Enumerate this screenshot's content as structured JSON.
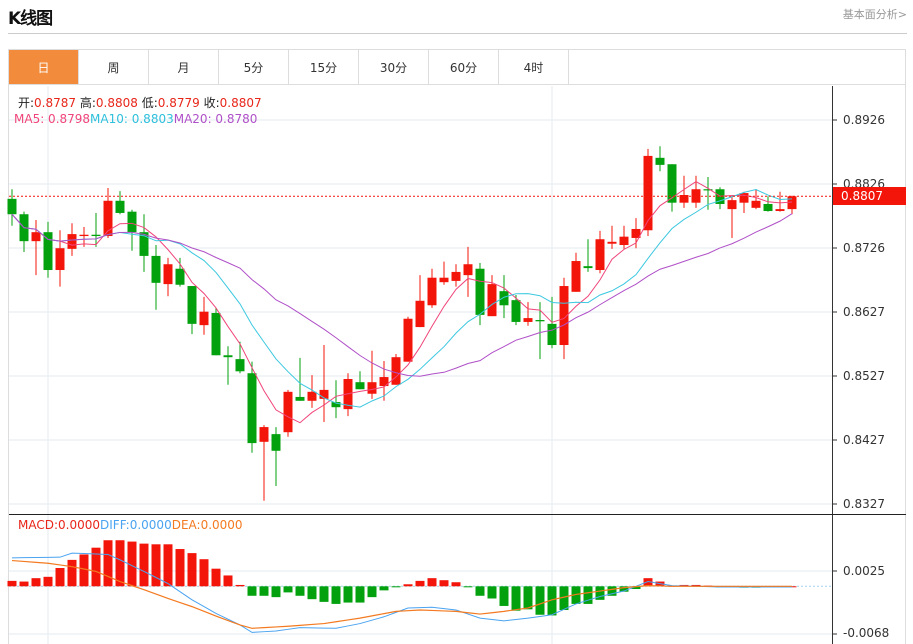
{
  "header": {
    "title": "K线图",
    "more_link": "基本面分析>"
  },
  "tabs": [
    {
      "label": "日",
      "active": true
    },
    {
      "label": "周"
    },
    {
      "label": "月"
    },
    {
      "label": "5分"
    },
    {
      "label": "15分"
    },
    {
      "label": "30分"
    },
    {
      "label": "60分"
    },
    {
      "label": "4时"
    }
  ],
  "ohlc_info": {
    "open_label": "开:",
    "open": "0.8787",
    "high_label": "高:",
    "high": "0.8808",
    "low_label": "低:",
    "low": "0.8779",
    "close_label": "收:",
    "close": "0.8807"
  },
  "ma_info": {
    "ma5": "MA5: 0.8798",
    "ma10": "MA10: 0.8803",
    "ma20": "MA20: 0.8780"
  },
  "macd_info": {
    "macd": "MACD:0.0000",
    "diff": "DIFF:0.0000",
    "dea": "DEA:0.0000"
  },
  "price_axis": [
    "0.8926",
    "0.8826",
    "0.8726",
    "0.8627",
    "0.8527",
    "0.8427",
    "0.8327"
  ],
  "macd_axis": [
    "0.0025",
    "-0.0068"
  ],
  "current_price": "0.8807",
  "colors": {
    "up": "#f3150a",
    "down": "#03a10e",
    "ma5": "#f0457a",
    "ma10": "#3cc8e0",
    "ma20": "#b050c8",
    "diff": "#4aa3f0",
    "dea": "#f37a20",
    "active_tab": "#f28c3c"
  },
  "chart_data": {
    "type": "candlestick",
    "price_range": [
      0.8327,
      0.8926
    ],
    "macd_range": [
      -0.0068,
      0.0025
    ],
    "candles_ochl_order": "open,close,high,low",
    "candles": [
      [
        0.8803,
        0.8779,
        0.8818,
        0.8761
      ],
      [
        0.8779,
        0.8737,
        0.8783,
        0.872
      ],
      [
        0.8737,
        0.8751,
        0.877,
        0.8684
      ],
      [
        0.8751,
        0.8692,
        0.8767,
        0.868
      ],
      [
        0.8692,
        0.8726,
        0.8754,
        0.8666
      ],
      [
        0.8725,
        0.8748,
        0.8765,
        0.8714
      ],
      [
        0.8745,
        0.8747,
        0.8759,
        0.8728
      ],
      [
        0.8747,
        0.8745,
        0.8781,
        0.8728
      ],
      [
        0.8745,
        0.88,
        0.882,
        0.8742
      ],
      [
        0.88,
        0.8781,
        0.8815,
        0.8779
      ],
      [
        0.8783,
        0.8751,
        0.8786,
        0.8722
      ],
      [
        0.8751,
        0.8714,
        0.8779,
        0.8689
      ],
      [
        0.8714,
        0.8672,
        0.8731,
        0.863
      ],
      [
        0.867,
        0.8701,
        0.8711,
        0.8651
      ],
      [
        0.8694,
        0.8669,
        0.8711,
        0.8666
      ],
      [
        0.8667,
        0.8608,
        0.8667,
        0.8592
      ],
      [
        0.8606,
        0.8627,
        0.865,
        0.8591
      ],
      [
        0.8625,
        0.8559,
        0.8633,
        0.8559
      ],
      [
        0.8559,
        0.8556,
        0.8573,
        0.8513
      ],
      [
        0.8553,
        0.8534,
        0.858,
        0.8531
      ],
      [
        0.8531,
        0.8422,
        0.8549,
        0.8407
      ],
      [
        0.8424,
        0.8447,
        0.845,
        0.8332
      ],
      [
        0.8436,
        0.841,
        0.8447,
        0.8355
      ],
      [
        0.8439,
        0.8502,
        0.8505,
        0.8432
      ],
      [
        0.8494,
        0.8488,
        0.8555,
        0.8488
      ],
      [
        0.8488,
        0.8502,
        0.8528,
        0.8477
      ],
      [
        0.8491,
        0.8505,
        0.8575,
        0.8455
      ],
      [
        0.8486,
        0.8478,
        0.852,
        0.8461
      ],
      [
        0.8475,
        0.8522,
        0.8531,
        0.8464
      ],
      [
        0.8517,
        0.8506,
        0.8534,
        0.8506
      ],
      [
        0.8499,
        0.8517,
        0.8566,
        0.8491
      ],
      [
        0.8511,
        0.8525,
        0.855,
        0.8488
      ],
      [
        0.8513,
        0.8556,
        0.8561,
        0.8513
      ],
      [
        0.8549,
        0.8616,
        0.8619,
        0.8549
      ],
      [
        0.8603,
        0.8644,
        0.8684,
        0.8603
      ],
      [
        0.8637,
        0.868,
        0.8694,
        0.8633
      ],
      [
        0.8673,
        0.868,
        0.8705,
        0.8669
      ],
      [
        0.8675,
        0.8689,
        0.8701,
        0.8666
      ],
      [
        0.8684,
        0.8701,
        0.8728,
        0.865
      ],
      [
        0.8694,
        0.8622,
        0.8703,
        0.8606
      ],
      [
        0.862,
        0.867,
        0.8684,
        0.862
      ],
      [
        0.8659,
        0.8637,
        0.8684,
        0.8617
      ],
      [
        0.8645,
        0.8611,
        0.8653,
        0.8606
      ],
      [
        0.8611,
        0.8617,
        0.8642,
        0.8605
      ],
      [
        0.8614,
        0.8612,
        0.8642,
        0.8553
      ],
      [
        0.8608,
        0.8575,
        0.865,
        0.857
      ],
      [
        0.8575,
        0.8667,
        0.868,
        0.8553
      ],
      [
        0.8658,
        0.8706,
        0.8719,
        0.8658
      ],
      [
        0.8698,
        0.8695,
        0.874,
        0.8689
      ],
      [
        0.8692,
        0.874,
        0.8753,
        0.8687
      ],
      [
        0.8733,
        0.8736,
        0.8761,
        0.8725
      ],
      [
        0.8731,
        0.8744,
        0.8761,
        0.8725
      ],
      [
        0.8742,
        0.8756,
        0.8773,
        0.8726
      ],
      [
        0.8754,
        0.887,
        0.8881,
        0.8745
      ],
      [
        0.8867,
        0.8856,
        0.8885,
        0.8846
      ],
      [
        0.8857,
        0.8797,
        0.8857,
        0.8783
      ],
      [
        0.8797,
        0.8809,
        0.8839,
        0.8789
      ],
      [
        0.8797,
        0.8818,
        0.8839,
        0.8789
      ],
      [
        0.8818,
        0.8817,
        0.8837,
        0.8786
      ],
      [
        0.8818,
        0.8795,
        0.8821,
        0.8787
      ],
      [
        0.8787,
        0.8801,
        0.8809,
        0.8742
      ],
      [
        0.8797,
        0.8812,
        0.8814,
        0.8781
      ],
      [
        0.8789,
        0.88,
        0.8818,
        0.8787
      ],
      [
        0.8795,
        0.8784,
        0.8807,
        0.8783
      ],
      [
        0.8784,
        0.8787,
        0.8814,
        0.8783
      ],
      [
        0.8787,
        0.8807,
        0.8808,
        0.8779
      ]
    ],
    "macd_hist": [
      0.0008,
      0.0007,
      0.0012,
      0.0014,
      0.0027,
      0.0039,
      0.0047,
      0.0057,
      0.0068,
      0.0068,
      0.0066,
      0.0063,
      0.0062,
      0.0062,
      0.0055,
      0.0049,
      0.004,
      0.0026,
      0.0016,
      0.0002,
      -0.0014,
      -0.0014,
      -0.0016,
      -0.0009,
      -0.0014,
      -0.0019,
      -0.0023,
      -0.0026,
      -0.0024,
      -0.0024,
      -0.0016,
      -0.0006,
      -0.0001,
      0.0003,
      0.0008,
      0.0012,
      0.0009,
      0.0006,
      -0.0001,
      -0.0014,
      -0.0018,
      -0.0029,
      -0.0036,
      -0.0034,
      -0.0042,
      -0.0043,
      -0.0035,
      -0.0026,
      -0.0026,
      -0.002,
      -0.0014,
      -0.0008,
      -0.0004,
      0.0012,
      0.0007,
      0.0001,
      0.0002,
      0.0002,
      0.0001,
      -0.0001,
      -0.0001,
      -0.0002,
      -0.0002,
      -0.0001,
      -0.0001,
      0.0
    ],
    "diff_points": [
      [
        0,
        0.0042
      ],
      [
        4,
        0.0043
      ],
      [
        5,
        0.0049
      ],
      [
        8,
        0.0047
      ],
      [
        9,
        0.0039
      ],
      [
        11,
        0.0022
      ],
      [
        13,
        0.0004
      ],
      [
        15,
        -0.002
      ],
      [
        17,
        -0.004
      ],
      [
        19,
        -0.0057
      ],
      [
        20,
        -0.0068
      ],
      [
        22,
        -0.0066
      ],
      [
        24,
        -0.0061
      ],
      [
        27,
        -0.0062
      ],
      [
        29,
        -0.0055
      ],
      [
        31,
        -0.0045
      ],
      [
        33,
        -0.0032
      ],
      [
        35,
        -0.0031
      ],
      [
        37,
        -0.0035
      ],
      [
        39,
        -0.0047
      ],
      [
        41,
        -0.0051
      ],
      [
        43,
        -0.0047
      ],
      [
        45,
        -0.0042
      ],
      [
        47,
        -0.0026
      ],
      [
        49,
        -0.0015
      ],
      [
        51,
        -0.0007
      ],
      [
        53,
        0.0007
      ],
      [
        55,
        0.0001
      ],
      [
        59,
        -0.0001
      ],
      [
        65,
        -0.0001
      ]
    ],
    "dea_points": [
      [
        0,
        0.0038
      ],
      [
        3,
        0.0034
      ],
      [
        5,
        0.0029
      ],
      [
        7,
        0.0022
      ],
      [
        9,
        0.0007
      ],
      [
        11,
        -0.0005
      ],
      [
        13,
        -0.0018
      ],
      [
        15,
        -0.003
      ],
      [
        17,
        -0.0044
      ],
      [
        19,
        -0.0057
      ],
      [
        20,
        -0.0062
      ],
      [
        23,
        -0.0059
      ],
      [
        26,
        -0.0055
      ],
      [
        29,
        -0.0047
      ],
      [
        32,
        -0.0037
      ],
      [
        34,
        -0.0035
      ],
      [
        37,
        -0.0037
      ],
      [
        39,
        -0.0041
      ],
      [
        41,
        -0.0037
      ],
      [
        43,
        -0.0032
      ],
      [
        45,
        -0.002
      ],
      [
        47,
        -0.0012
      ],
      [
        49,
        -0.0007
      ],
      [
        51,
        -0.0002
      ],
      [
        53,
        0.0001
      ],
      [
        55,
        0.0
      ],
      [
        65,
        0.0
      ]
    ]
  }
}
